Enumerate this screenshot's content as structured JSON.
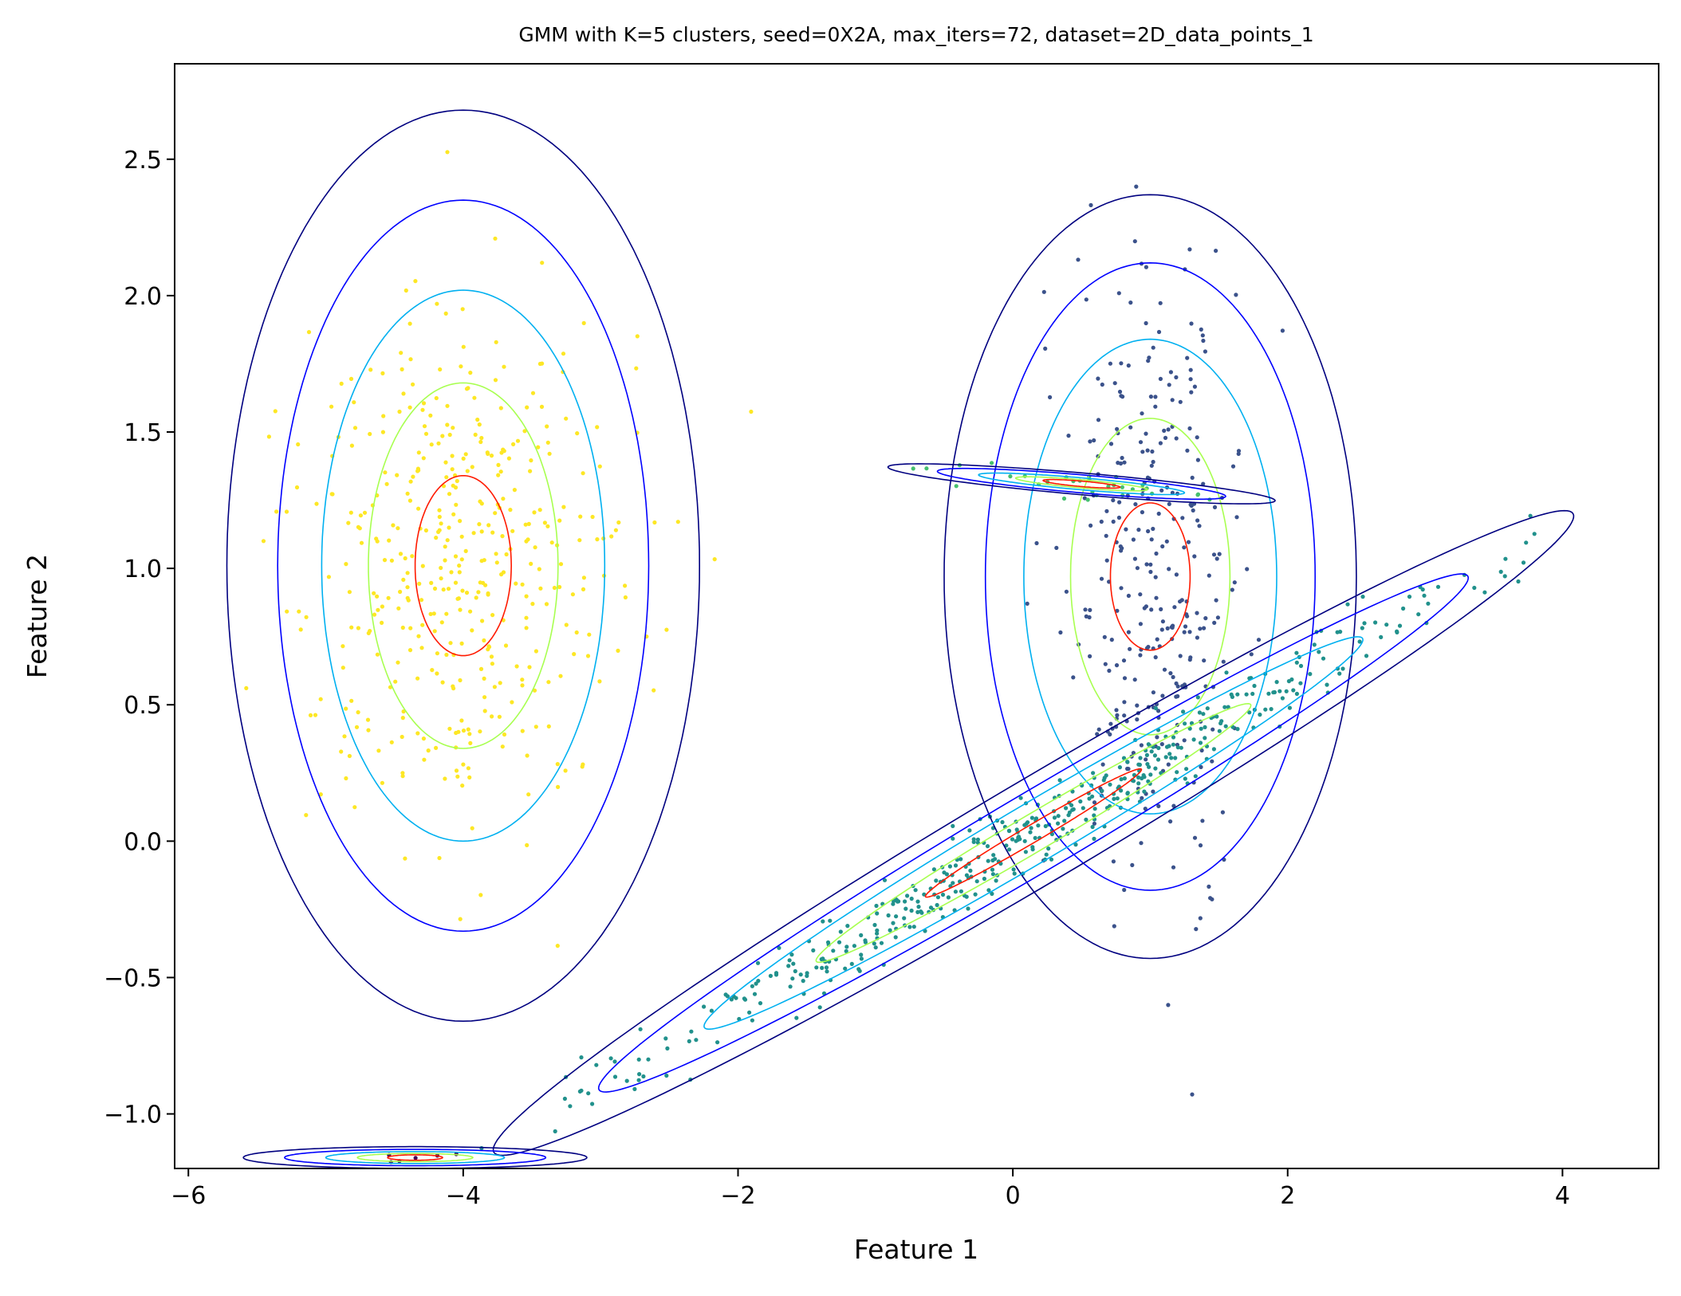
{
  "chart_data": {
    "type": "scatter",
    "title": "GMM with K=5 clusters, seed=0X2A, max_iters=72, dataset=2D_data_points_1",
    "xlabel": "Feature 1",
    "ylabel": "Feature 2",
    "xlim": [
      -6.1,
      4.7
    ],
    "ylim": [
      -1.2,
      2.85
    ],
    "xticks": [
      -6,
      -4,
      -2,
      0,
      2,
      4
    ],
    "xtick_labels": [
      "−6",
      "−4",
      "−2",
      "0",
      "2",
      "4"
    ],
    "yticks": [
      -1.0,
      -0.5,
      0.0,
      0.5,
      1.0,
      1.5,
      2.0,
      2.5
    ],
    "ytick_labels": [
      "−1.0",
      "−0.5",
      "0.0",
      "0.5",
      "1.0",
      "1.5",
      "2.0",
      "2.5"
    ],
    "grid": false,
    "contour_colors": [
      "#000080",
      "#0000ff",
      "#00b0f0",
      "#a8ff50",
      "#ff1a00"
    ],
    "clusters": [
      {
        "mean": [
          -4.0,
          1.01
        ],
        "std": [
          0.6,
          0.52
        ],
        "angle_deg": 0,
        "point_color": "#fde725",
        "n_points": 420,
        "contour_radii": [
          [
            1.72,
            1.67
          ],
          [
            1.35,
            1.34
          ],
          [
            1.03,
            1.01
          ],
          [
            0.69,
            0.67
          ],
          [
            0.35,
            0.33
          ]
        ]
      },
      {
        "mean": [
          1.0,
          0.97
        ],
        "std": [
          0.33,
          0.58
        ],
        "angle_deg": 0,
        "point_color": "#3b528b",
        "n_points": 320,
        "contour_radii": [
          [
            1.5,
            1.4
          ],
          [
            1.2,
            1.15
          ],
          [
            0.92,
            0.87
          ],
          [
            0.58,
            0.58
          ],
          [
            0.29,
            0.27
          ]
        ]
      },
      {
        "mean": [
          0.15,
          0.03
        ],
        "std": [
          1.6,
          0.065
        ],
        "angle_deg": 16.5,
        "point_color": "#21918c",
        "n_points": 480,
        "contour_radii": [
          [
            4.1,
            0.21
          ],
          [
            3.3,
            0.16
          ],
          [
            2.5,
            0.12
          ],
          [
            1.65,
            0.075
          ],
          [
            0.82,
            0.035
          ]
        ]
      },
      {
        "mean": [
          0.5,
          1.31
        ],
        "std": [
          0.5,
          0.02
        ],
        "angle_deg": -2.5,
        "point_color": "#46c06f",
        "n_points": 30,
        "contour_radii": [
          [
            1.41,
            0.04
          ],
          [
            1.05,
            0.033
          ],
          [
            0.75,
            0.022
          ],
          [
            0.48,
            0.015
          ],
          [
            0.28,
            0.01
          ]
        ]
      },
      {
        "mean": [
          -4.35,
          -1.16
        ],
        "std": [
          0.25,
          0.01
        ],
        "angle_deg": 0,
        "point_color": "#440154",
        "n_points": 6,
        "contour_radii": [
          [
            1.25,
            0.04
          ],
          [
            0.95,
            0.03
          ],
          [
            0.65,
            0.022
          ],
          [
            0.42,
            0.015
          ],
          [
            0.2,
            0.01
          ]
        ]
      }
    ]
  }
}
